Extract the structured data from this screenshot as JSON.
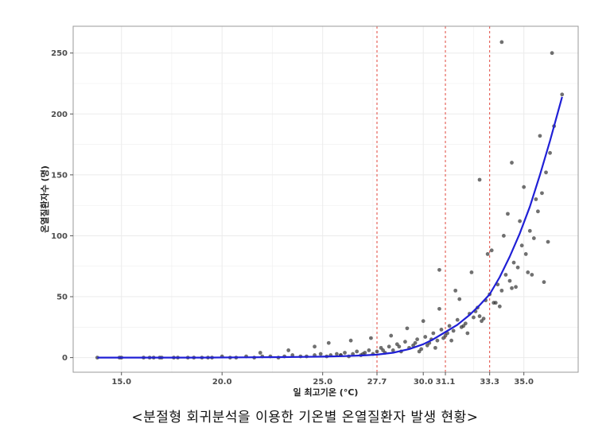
{
  "caption": "<분절형 회귀분석을 이용한 기온별 온열질환자 발생 현황>",
  "chart_data": {
    "type": "scatter",
    "title": "",
    "xlabel": "일 최고기온 (°C)",
    "ylabel": "온열질환자수 (명)",
    "xlim": [
      12.6,
      37.7
    ],
    "ylim": [
      -12,
      272
    ],
    "grid": true,
    "x_ticks": [
      {
        "value": 15.0,
        "label": "15.0"
      },
      {
        "value": 20.0,
        "label": "20.0"
      },
      {
        "value": 25.0,
        "label": "25.0"
      },
      {
        "value": 27.7,
        "label": "27.7"
      },
      {
        "value": 30.0,
        "label": "30.0"
      },
      {
        "value": 31.1,
        "label": "31.1"
      },
      {
        "value": 33.3,
        "label": "33.3"
      },
      {
        "value": 35.0,
        "label": "35.0"
      }
    ],
    "y_ticks": [
      {
        "value": 0,
        "label": "0"
      },
      {
        "value": 50,
        "label": "50"
      },
      {
        "value": 100,
        "label": "100"
      },
      {
        "value": 150,
        "label": "150"
      },
      {
        "value": 200,
        "label": "200"
      },
      {
        "value": 250,
        "label": "250"
      }
    ],
    "breakpoints": [
      27.7,
      31.1,
      33.3
    ],
    "colors": {
      "points": "#333333",
      "fit_line": "#1f1fd6",
      "breakpoint_line": "#e0463c",
      "grid": "#ebebeb",
      "frame": "#9a9a9a"
    },
    "fitted_curve": {
      "x": [
        13.8,
        15,
        17,
        19,
        21,
        23,
        25,
        26,
        27,
        27.7,
        28.5,
        29.3,
        30,
        30.5,
        31.1,
        31.7,
        32.3,
        32.8,
        33.3,
        33.8,
        34.3,
        34.8,
        35.3,
        35.8,
        36.3,
        36.9
      ],
      "y": [
        0,
        0,
        0,
        0,
        0.2,
        0.4,
        0.8,
        1.2,
        1.8,
        2.4,
        4,
        7,
        11,
        15,
        21,
        27,
        35,
        43,
        52,
        66,
        83,
        102,
        124,
        150,
        178,
        214
      ]
    },
    "points": {
      "x": [
        13.8,
        14.9,
        15.0,
        16.1,
        16.4,
        16.6,
        16.9,
        17.0,
        17.6,
        17.8,
        18.3,
        18.6,
        19.0,
        19.3,
        19.5,
        20.0,
        20.4,
        20.7,
        21.2,
        21.6,
        22.0,
        22.4,
        22.8,
        23.1,
        23.5,
        23.9,
        24.2,
        24.6,
        24.9,
        25.2,
        25.4,
        25.7,
        25.9,
        26.1,
        26.3,
        26.5,
        26.7,
        26.9,
        27.1,
        27.3,
        27.5,
        27.7,
        27.9,
        28.1,
        28.3,
        28.5,
        28.7,
        28.9,
        29.1,
        29.3,
        29.5,
        29.7,
        29.9,
        30.1,
        30.3,
        30.5,
        30.7,
        30.9,
        31.1,
        31.3,
        31.5,
        31.7,
        31.9,
        32.1,
        32.3,
        32.5,
        32.7,
        32.9,
        33.1,
        33.3,
        33.5,
        33.7,
        33.9,
        34.1,
        34.3,
        34.5,
        34.7,
        34.9,
        35.1,
        35.3,
        35.5,
        35.7,
        35.9,
        36.1,
        36.3,
        36.5,
        36.9,
        21.9,
        23.3,
        24.6,
        25.3,
        25.9,
        26.4,
        27.0,
        27.4,
        28.0,
        28.4,
        28.8,
        29.2,
        29.6,
        30.0,
        30.4,
        30.8,
        31.2,
        31.6,
        32.0,
        32.4,
        32.8,
        33.2,
        33.6,
        34.0,
        34.4,
        34.8,
        35.2,
        35.6,
        36.0,
        29.8,
        30.6,
        31.4,
        32.2,
        33.0,
        33.8,
        34.6,
        35.4,
        36.2,
        30.2,
        31.0,
        31.8,
        32.6,
        33.4,
        34.2,
        35.0,
        30.8,
        32.8,
        34.4,
        35.8,
        33.9,
        36.4
      ],
      "y": [
        0,
        0,
        0,
        0,
        0,
        0,
        0,
        0,
        0,
        0,
        0,
        0,
        0,
        0,
        0,
        1,
        0,
        0,
        1,
        0,
        1,
        1,
        0,
        1,
        2,
        1,
        1,
        2,
        3,
        1,
        2,
        3,
        2,
        4,
        1,
        3,
        5,
        2,
        4,
        6,
        3,
        5,
        8,
        4,
        9,
        6,
        11,
        5,
        13,
        8,
        10,
        15,
        7,
        17,
        12,
        20,
        14,
        23,
        18,
        26,
        22,
        31,
        25,
        28,
        36,
        33,
        41,
        30,
        47,
        52,
        45,
        60,
        55,
        68,
        63,
        78,
        74,
        92,
        85,
        104,
        98,
        120,
        135,
        152,
        168,
        190,
        216,
        4,
        6,
        9,
        12,
        2,
        14,
        3,
        16,
        6,
        18,
        9,
        24,
        12,
        30,
        15,
        40,
        20,
        55,
        26,
        70,
        34,
        85,
        45,
        100,
        57,
        112,
        70,
        130,
        62,
        5,
        8,
        14,
        20,
        32,
        42,
        58,
        68,
        95,
        10,
        16,
        48,
        38,
        88,
        118,
        140,
        72,
        146,
        160,
        182,
        259,
        250
      ]
    }
  }
}
